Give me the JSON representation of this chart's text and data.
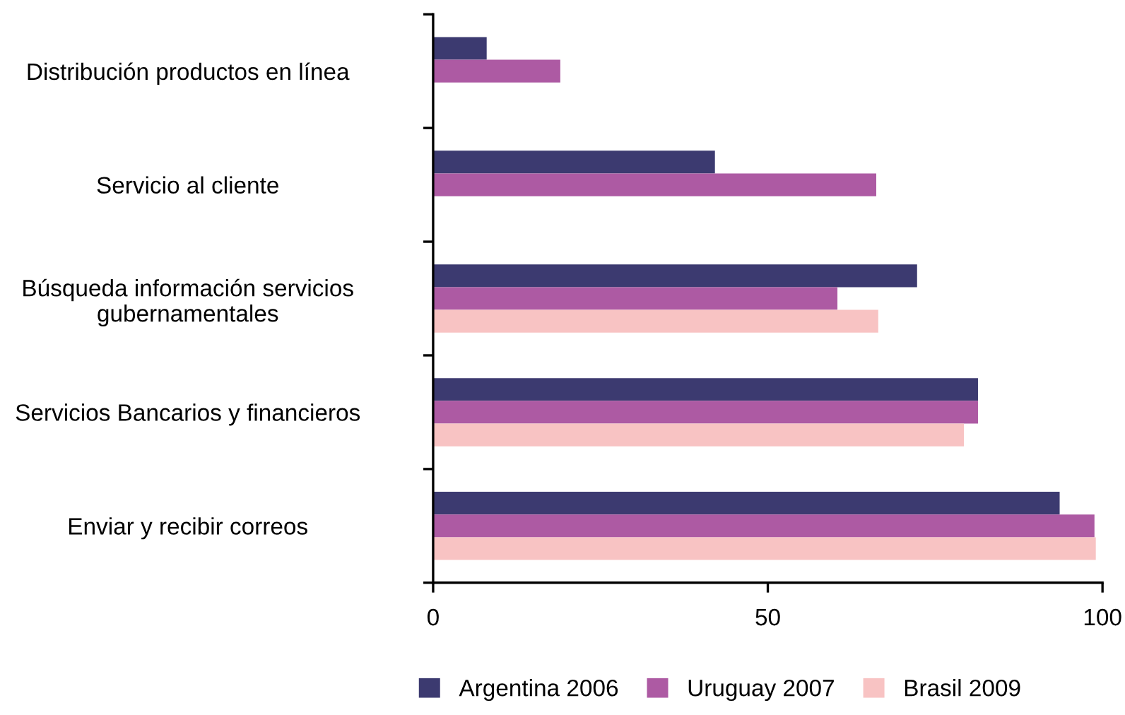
{
  "chart_data": {
    "type": "bar",
    "orientation": "horizontal",
    "categories": [
      "Distribución productos en línea",
      "Servicio al cliente",
      "Búsqueda información servicios\ngubernamentales",
      "Servicios Bancarios y financieros",
      "Enviar y recibir correos"
    ],
    "series": [
      {
        "name": "Argentina 2006",
        "color": "#3c3a70",
        "values": [
          8.0,
          42.1,
          72.3,
          81.4,
          93.6
        ]
      },
      {
        "name": "Uruguay 2007",
        "color": "#ad5aa3",
        "values": [
          19.0,
          66.2,
          60.4,
          81.4,
          98.8
        ]
      },
      {
        "name": "Brasil 2009",
        "color": "#f8c3c3",
        "values": [
          null,
          null,
          66.5,
          79.3,
          99.0
        ]
      }
    ],
    "xlim": [
      0,
      100
    ],
    "xticks": [
      0,
      50,
      100
    ],
    "grid": false,
    "legend": "bottom"
  }
}
